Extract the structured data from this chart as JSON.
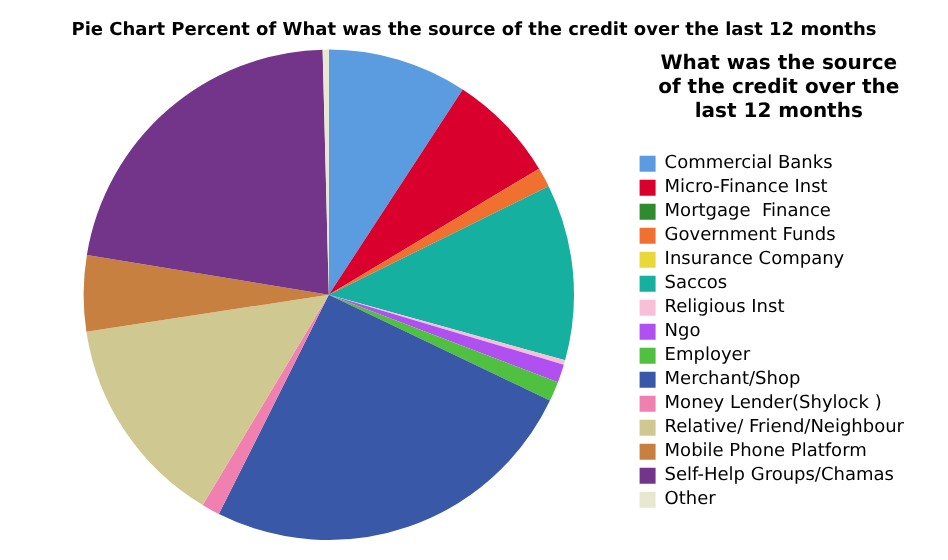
{
  "chart_data": {
    "type": "pie",
    "title": "Pie Chart Percent of What was the source of the credit over the last 12 months",
    "legend_title": "What was the source of the credit over the last 12 months",
    "legend": "right",
    "categories": [
      "Commercial Banks",
      "Micro-Finance Inst",
      "Mortgage  Finance",
      "Government Funds",
      "Insurance Company",
      "Saccos",
      "Religious Inst",
      "Ngo",
      "Employer",
      "Merchant/Shop",
      "Money Lender(Shylock )",
      "Relative/ Friend/Neighbour",
      "Mobile Phone Platform",
      "Self-Help Groups/Chamas",
      "Other"
    ],
    "values": [
      9.2,
      7.2,
      0,
      1.3,
      0,
      11.6,
      0.3,
      1.2,
      1.3,
      25.3,
      1.2,
      14,
      5,
      22,
      0.4
    ],
    "colors": [
      "#5b9be0",
      "#d9002e",
      "#2e8b2e",
      "#f07030",
      "#e8d83a",
      "#16b0a0",
      "#f8c0d8",
      "#b050f0",
      "#50c040",
      "#3a58a8",
      "#f080b0",
      "#cfc890",
      "#c88040",
      "#73358a",
      "#e8e8d0"
    ]
  }
}
